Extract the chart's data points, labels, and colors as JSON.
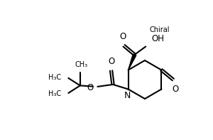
{
  "bg_color": "#ffffff",
  "line_color": "#000000",
  "line_width": 1.5,
  "font_size": 7.5,
  "chiral_label": "Chiral",
  "xlim": [
    0,
    10
  ],
  "ylim": [
    0,
    6.5
  ]
}
